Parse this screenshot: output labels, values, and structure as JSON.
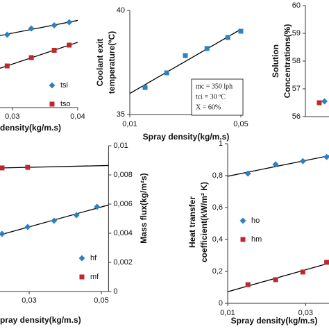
{
  "chart_data": [
    {
      "type": "scatter",
      "xlabel": "density(kg/m.s)",
      "xlim": [
        0.028,
        0.04
      ],
      "xticks": [
        {
          "value": 0.03,
          "label": "0,03"
        },
        {
          "value": 0.04,
          "label": "0,04"
        }
      ],
      "ylim": [
        0,
        1
      ],
      "trendline": true,
      "series": [
        {
          "name": "tsi",
          "color": "#2f7fc1",
          "marker": "diamond",
          "x": [
            0.0292,
            0.0329,
            0.0364,
            0.0387
          ],
          "values": [
            0.7,
            0.76,
            0.79,
            0.82
          ]
        },
        {
          "name": "tso",
          "color": "#c0272d",
          "marker": "square",
          "x": [
            0.0292,
            0.0329,
            0.0364,
            0.0387
          ],
          "values": [
            0.4,
            0.48,
            0.55,
            0.6
          ]
        }
      ]
    },
    {
      "type": "scatter",
      "xlabel": "Spray density(kg/m.s)",
      "ylabel": [
        "Coolant exit",
        "temperature(ºC)"
      ],
      "xlim": [
        0.01,
        0.05
      ],
      "xticks": [
        {
          "value": 0.01,
          "label": "0,01"
        },
        {
          "value": 0.05,
          "label": "0,05"
        }
      ],
      "ylim": [
        35,
        40
      ],
      "yticks": [
        35,
        40
      ],
      "trendline": true,
      "annotations": [
        "mc = 350 lph",
        "tci = 30 ºC",
        "X = 60%"
      ],
      "series": [
        {
          "color": "#2f7fc1",
          "marker": "square",
          "x": [
            0.0155,
            0.0233,
            0.03,
            0.0378,
            0.0453,
            0.05
          ],
          "values": [
            36.3,
            37.0,
            37.83,
            38.17,
            38.7,
            39.0
          ]
        }
      ]
    },
    {
      "type": "scatter",
      "ylabel": [
        "Solution",
        "Concentrations(%)"
      ],
      "xlim": [
        0.01,
        0.019
      ],
      "ylim": [
        56,
        60
      ],
      "yticks": [
        56,
        57,
        58,
        59,
        60
      ],
      "trendline": false,
      "series": [
        {
          "color": "#2f7fc1",
          "marker": "diamond",
          "x": [
            0.0111
          ],
          "values": [
            56.55
          ]
        },
        {
          "color": "#c0272d",
          "marker": "square",
          "x": [
            0.0108
          ],
          "values": [
            56.5
          ]
        }
      ]
    },
    {
      "type": "scatter",
      "xlabel": "pray density(kg/m.s)",
      "y2label": "Mass flux(kg/m²s)",
      "xlim": [
        0.02,
        0.052
      ],
      "xticks": [
        {
          "value": 0.03,
          "label": "0,03"
        },
        {
          "value": 0.05,
          "label": "0,05"
        }
      ],
      "ylim": [
        0,
        1
      ],
      "y2lim": [
        0,
        0.01
      ],
      "y2ticks": [
        {
          "value": 0.01,
          "label": "0,01"
        },
        {
          "value": 0.008,
          "label": "0,008"
        },
        {
          "value": 0.006,
          "label": "0,006"
        },
        {
          "value": 0.004,
          "label": "0,004"
        },
        {
          "value": 0.002,
          "label": "0,002"
        },
        0
      ],
      "trendline": true,
      "series": [
        {
          "name": "hf",
          "color": "#2f7fc1",
          "marker": "diamond",
          "x": [
            0.0225,
            0.0296,
            0.0369,
            0.0431,
            0.0488
          ],
          "values": [
            0.395,
            0.443,
            0.486,
            0.524,
            0.581
          ]
        },
        {
          "name": "mf",
          "color": "#c0272d",
          "marker": "square",
          "axis": "y2",
          "x": [
            0.0225,
            0.0296
          ],
          "values": [
            0.00848,
            0.00852
          ]
        }
      ]
    },
    {
      "type": "scatter",
      "xlabel": "Spray density(kg/m.s)",
      "ylabel": [
        "Heat transfer",
        "coefficient(kW/m² K)"
      ],
      "xlim": [
        0.01,
        0.036
      ],
      "xticks": [
        {
          "value": 0.01,
          "label": "0,01"
        },
        {
          "value": 0.03,
          "label": "0,03"
        }
      ],
      "ylim": [
        0,
        1
      ],
      "yticks": [
        0,
        {
          "value": 0.2,
          "label": "0,2"
        },
        {
          "value": 0.4,
          "label": "0,4"
        },
        {
          "value": 0.6,
          "label": "0,6"
        },
        {
          "value": 0.8,
          "label": "0,8"
        },
        1
      ],
      "trendline": true,
      "series": [
        {
          "name": "ho",
          "color": "#2f7fc1",
          "marker": "diamond",
          "x": [
            0.0152,
            0.0223,
            0.0293,
            0.0354
          ],
          "values": [
            0.813,
            0.87,
            0.891,
            0.917
          ]
        },
        {
          "name": "hm",
          "color": "#c0272d",
          "marker": "square",
          "x": [
            0.0152,
            0.0223,
            0.0293,
            0.0354
          ],
          "values": [
            0.117,
            0.148,
            0.196,
            0.257
          ]
        }
      ]
    }
  ]
}
